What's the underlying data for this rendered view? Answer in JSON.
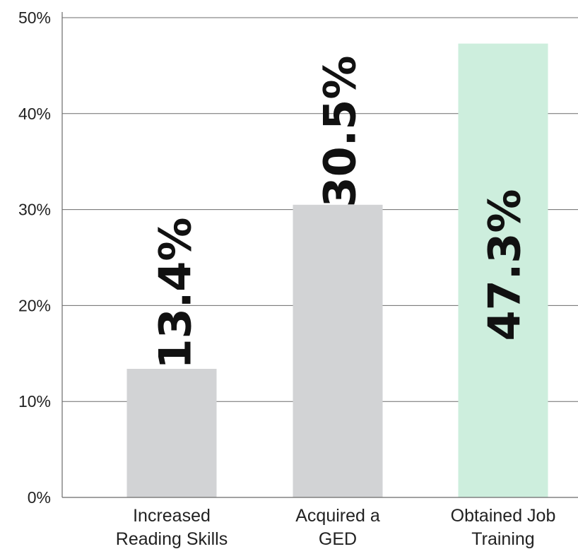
{
  "chart_data": {
    "type": "bar",
    "categories": [
      [
        "Increased",
        "Reading Skills"
      ],
      [
        "Acquired a",
        "GED"
      ],
      [
        "Obtained Job",
        "Training"
      ]
    ],
    "values": [
      13.4,
      30.5,
      47.3
    ],
    "value_labels": [
      "13.4%",
      "30.5%",
      "47.3%"
    ],
    "bar_colors": [
      "#d2d3d5",
      "#d2d3d5",
      "#cdeedd"
    ],
    "yticks": [
      0,
      10,
      20,
      30,
      40,
      50
    ],
    "ytick_labels": [
      "0%",
      "10%",
      "20%",
      "30%",
      "40%",
      "50%"
    ],
    "ylim": [
      0,
      50
    ],
    "grid": true,
    "title": "",
    "xlabel": "",
    "ylabel": ""
  }
}
